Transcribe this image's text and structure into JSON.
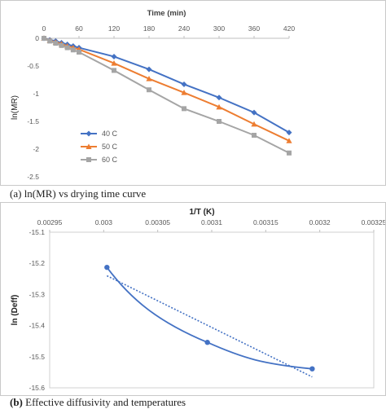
{
  "charts": {
    "a": {
      "caption_label": "(a)",
      "caption_text": "ln(MR) vs drying time curve"
    },
    "b": {
      "caption_label": "(b)",
      "caption_text": "Effective diffusivity and temperatures"
    }
  },
  "chart_data": [
    {
      "type": "line",
      "title": "",
      "xlabel": "Time (min)",
      "ylabel": "ln(MR)",
      "x_axis_position": "top",
      "xlim": [
        0,
        420
      ],
      "ylim": [
        -2.5,
        0
      ],
      "x_ticks": [
        "0",
        "60",
        "120",
        "180",
        "240",
        "300",
        "360",
        "420"
      ],
      "y_ticks": [
        "0",
        "-0.5",
        "-1",
        "-1.5",
        "-2",
        "-2.5"
      ],
      "legend_position": "bottom-left",
      "grid": false,
      "series": [
        {
          "name": "40 C",
          "color": "#4472C4",
          "marker": "diamond",
          "x": [
            0,
            10,
            20,
            30,
            40,
            50,
            60,
            120,
            180,
            240,
            300,
            360,
            420
          ],
          "y": [
            0,
            -0.03,
            -0.05,
            -0.08,
            -0.11,
            -0.14,
            -0.17,
            -0.33,
            -0.56,
            -0.83,
            -1.07,
            -1.34,
            -1.7
          ]
        },
        {
          "name": "50 C",
          "color": "#ED7D31",
          "marker": "triangle",
          "x": [
            0,
            10,
            20,
            30,
            40,
            50,
            60,
            120,
            180,
            240,
            300,
            360,
            420
          ],
          "y": [
            0,
            -0.04,
            -0.07,
            -0.1,
            -0.14,
            -0.17,
            -0.2,
            -0.45,
            -0.73,
            -0.98,
            -1.24,
            -1.55,
            -1.85
          ]
        },
        {
          "name": "60 C",
          "color": "#A5A5A5",
          "marker": "square",
          "x": [
            0,
            10,
            20,
            30,
            40,
            50,
            60,
            120,
            180,
            240,
            300,
            360,
            420
          ],
          "y": [
            0,
            -0.05,
            -0.09,
            -0.13,
            -0.17,
            -0.21,
            -0.25,
            -0.58,
            -0.93,
            -1.27,
            -1.5,
            -1.75,
            -2.07
          ]
        }
      ]
    },
    {
      "type": "scatter",
      "title": "",
      "xlabel": "1/T (K)",
      "ylabel": "ln (Deff)",
      "x_axis_position": "top",
      "xlim": [
        0.00295,
        0.00325
      ],
      "ylim": [
        -15.6,
        -15.1
      ],
      "x_ticks": [
        "0.00295",
        "0.003",
        "0.00305",
        "0.0031",
        "0.00315",
        "0.0032",
        "0.00325"
      ],
      "y_ticks": [
        "-15.1",
        "-15.2",
        "-15.3",
        "-15.4",
        "-15.5",
        "-15.6"
      ],
      "grid": false,
      "series": [
        {
          "color": "#4472C4",
          "marker": "circle",
          "smooth": true,
          "x": [
            0.003003,
            0.003096,
            0.003193
          ],
          "y": [
            -15.213,
            -15.454,
            -15.539
          ]
        }
      ],
      "trendline": {
        "style": "dotted",
        "color": "#4472C4",
        "x": [
          0.003003,
          0.003193
        ],
        "y": [
          -15.24,
          -15.565
        ]
      }
    }
  ]
}
